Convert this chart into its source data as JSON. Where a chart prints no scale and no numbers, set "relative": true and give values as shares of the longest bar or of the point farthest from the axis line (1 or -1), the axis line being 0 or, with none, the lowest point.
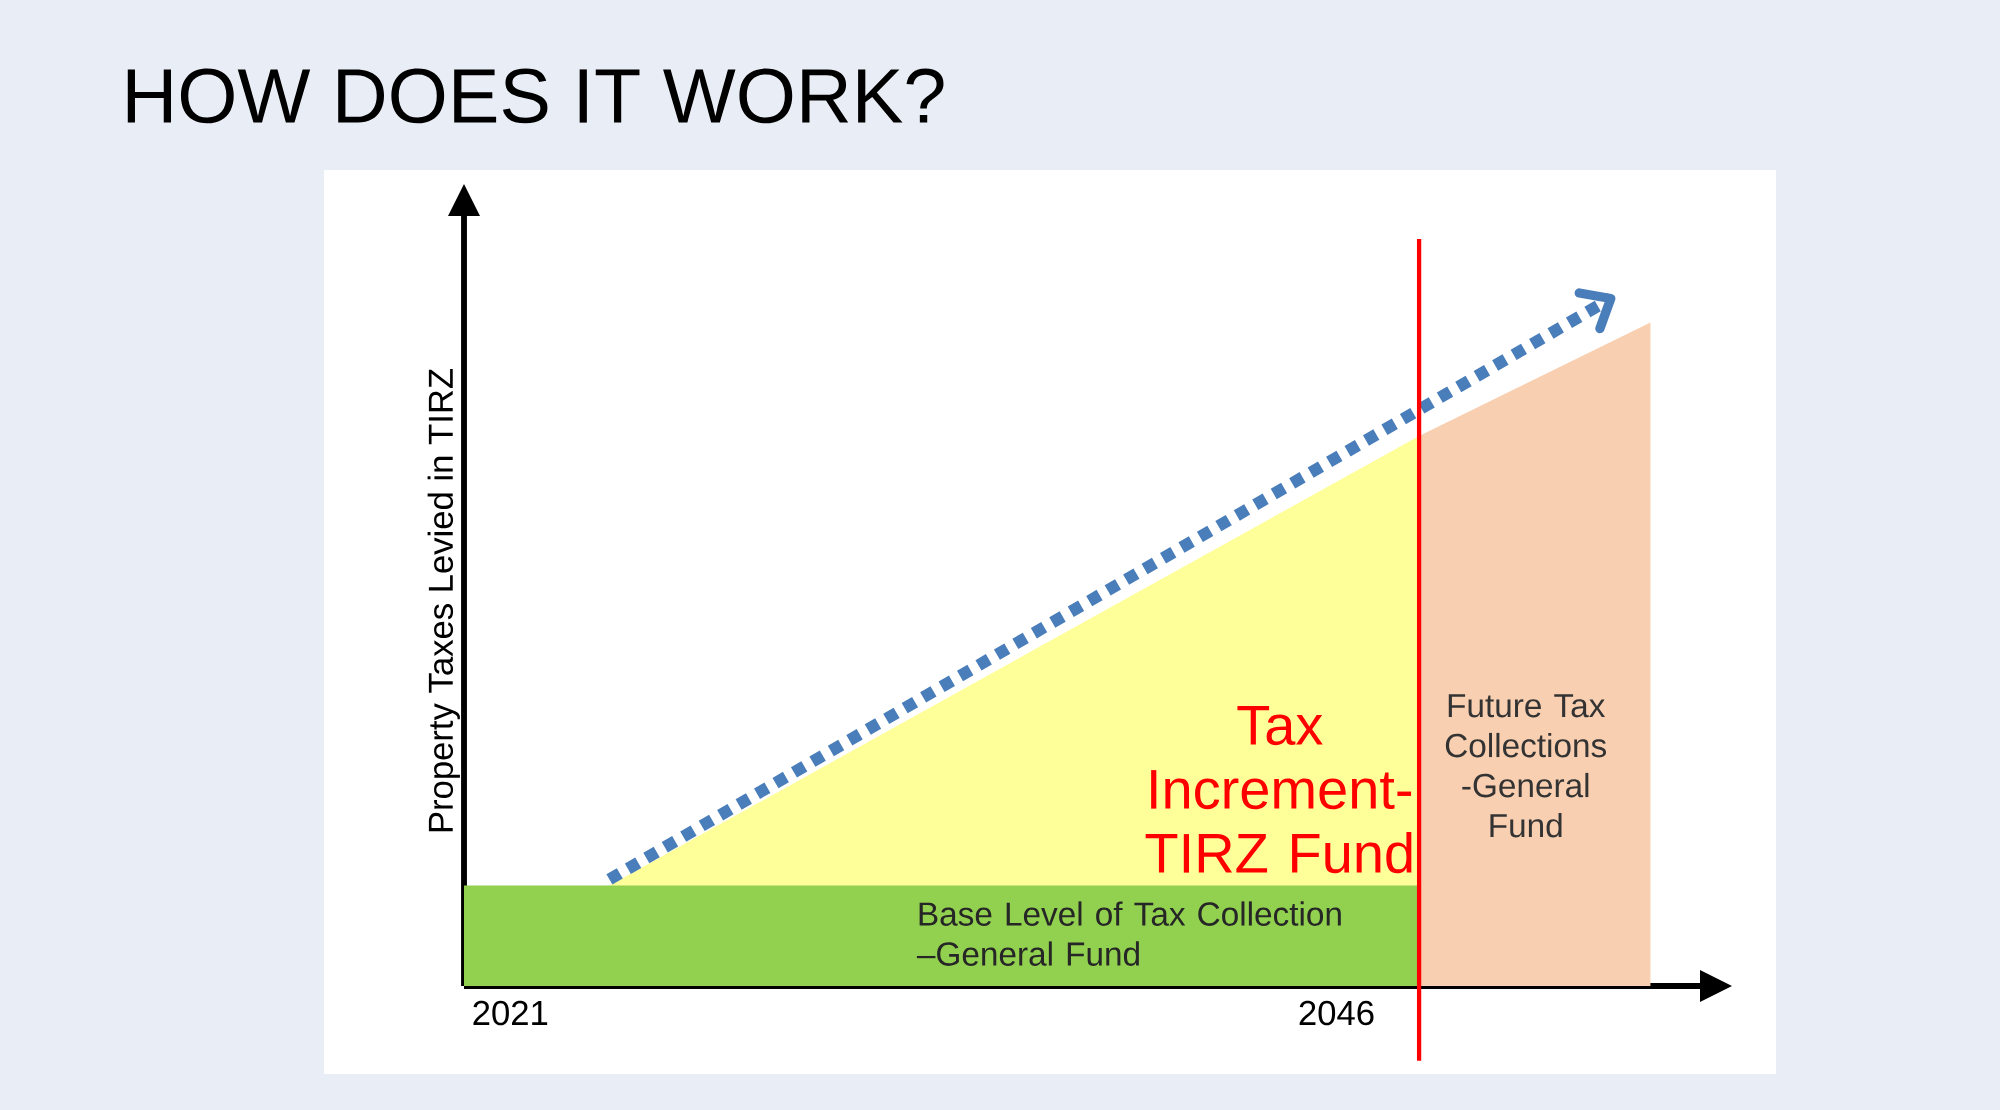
{
  "chart_data": {
    "type": "area",
    "relative": true,
    "title": "HOW DOES IT WORK?",
    "ylabel": "Property Taxes Levied in TIRZ",
    "xlim": [
      2019.6,
      2057
    ],
    "xticks": [
      2021,
      2046
    ],
    "series": [
      {
        "type": "area",
        "color": "#ffff99",
        "x": [
          2024.0,
          2048.5
        ],
        "values": [
          0.146,
          0.8
        ]
      },
      {
        "type": "area",
        "color": "#92d050",
        "x": [
          2019.6,
          2048.5
        ],
        "values": [
          0.146,
          0.146
        ]
      },
      {
        "type": "area",
        "color": "#f8cfb0",
        "x": [
          2048.5,
          2055.5
        ],
        "values": [
          0.8,
          0.965
        ]
      },
      {
        "type": "line",
        "color": "#4a7ebb",
        "line_style": "dotted",
        "x": [
          2024.0,
          2054.3
        ],
        "values": [
          0.155,
          1.0
        ]
      }
    ],
    "ref_lines": [
      {
        "axis": "x",
        "value": 2048.5,
        "color": "#ff0000"
      }
    ],
    "annotations": [
      "Tax Increment-TIRZ Fund",
      "Future Tax Collections -General Fund",
      "Base Level of Tax Collection –General Fund"
    ]
  }
}
